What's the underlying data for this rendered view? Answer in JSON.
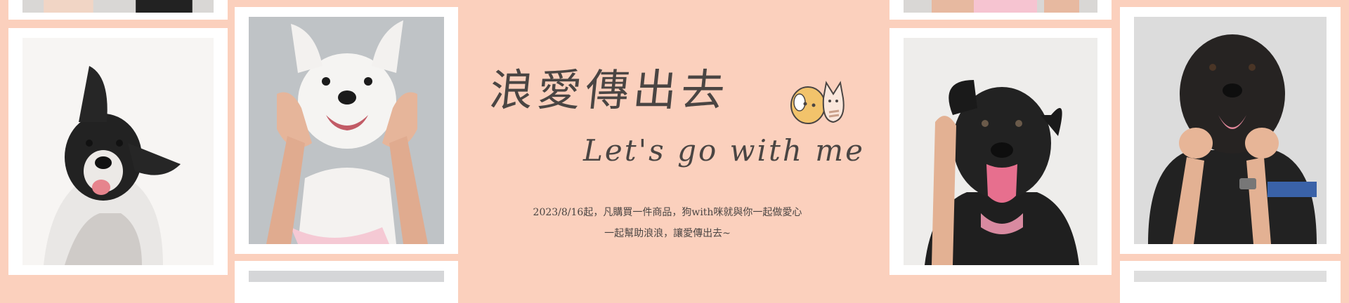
{
  "banner": {
    "title_zh": "浪愛傳出去",
    "title_en": "Let's go with me",
    "desc_line1": "2023/8/16起，凡購買一件商品，狗with咪就與你一起做愛心",
    "desc_line2": "一起幫助浪浪，讓愛傳出去~"
  },
  "colors": {
    "background": "#fbd0bd",
    "frame": "#ffffff",
    "text": "#4a4543"
  },
  "photos": [
    {
      "name": "partial-photo-top-left",
      "subject": "dog"
    },
    {
      "name": "dog-photo-black-white-ear-up",
      "subject": "black and white dog with one ear raised"
    },
    {
      "name": "dog-photo-white-smiling-hands",
      "subject": "white dog with hands on cheeks"
    },
    {
      "name": "partial-photo-bottom-left",
      "subject": "dog"
    },
    {
      "name": "partial-photo-top-right",
      "subject": "dog"
    },
    {
      "name": "dog-photo-black-tongue-out",
      "subject": "black dog with tongue out and hand on ear"
    },
    {
      "name": "dog-photo-black-senior-hands",
      "subject": "senior black dog with hands on cheeks"
    },
    {
      "name": "partial-photo-bottom-right",
      "subject": "dog"
    }
  ]
}
